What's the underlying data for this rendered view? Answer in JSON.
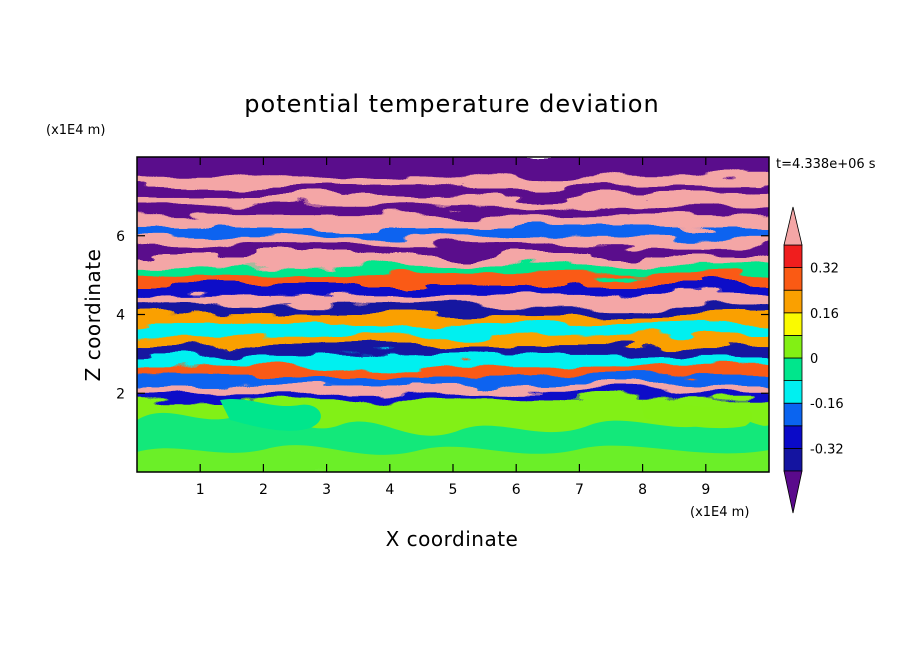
{
  "chart_data": {
    "type": "heatmap",
    "title": "potential temperature deviation",
    "xlabel": "X coordinate",
    "ylabel": "Z coordinate",
    "x_unit": "(x1E4 m)",
    "y_unit": "(x1E4 m)",
    "time_label": "t=4.338e+06 s",
    "xlim": [
      0,
      10
    ],
    "ylim": [
      0,
      8
    ],
    "x_ticks": [
      "1",
      "2",
      "3",
      "4",
      "5",
      "6",
      "7",
      "8",
      "9"
    ],
    "y_ticks": [
      "2",
      "4",
      "6"
    ],
    "x_tick_values": [
      1,
      2,
      3,
      4,
      5,
      6,
      7,
      8,
      9
    ],
    "y_tick_values": [
      2,
      4,
      6
    ],
    "colorbar": {
      "levels": [
        -0.4,
        -0.32,
        -0.24,
        -0.16,
        -0.08,
        0,
        0.08,
        0.16,
        0.24,
        0.32,
        0.4
      ],
      "colors": [
        "#5a0a8c",
        "#1414a0",
        "#0a0ac8",
        "#0a64f0",
        "#00f0f0",
        "#00e68c",
        "#82f014",
        "#fafa00",
        "#faa000",
        "#fa5a14",
        "#f01e1e",
        "#f4a6a6"
      ],
      "under_color": "#5a0a8c",
      "over_color": "#f4a6a6",
      "tick_labels": [
        "0.32",
        "0.16",
        "0",
        "-0.16",
        "-0.32"
      ],
      "tick_values": [
        0.32,
        0.16,
        0,
        -0.16,
        -0.32
      ]
    },
    "bands": [
      {
        "z0": 0.0,
        "z1": 1.95,
        "value": 0.0
      },
      {
        "z0": 1.95,
        "z1": 2.1,
        "value": -0.3
      },
      {
        "z0": 2.1,
        "z1": 2.3,
        "value": 0.42
      },
      {
        "z0": 2.3,
        "z1": 2.55,
        "value": -0.2
      },
      {
        "z0": 2.55,
        "z1": 2.8,
        "value": 0.26
      },
      {
        "z0": 2.8,
        "z1": 3.05,
        "value": -0.1
      },
      {
        "z0": 3.05,
        "z1": 3.3,
        "value": -0.33
      },
      {
        "z0": 3.3,
        "z1": 3.55,
        "value": 0.18
      },
      {
        "z0": 3.55,
        "z1": 3.85,
        "value": -0.12
      },
      {
        "z0": 3.85,
        "z1": 4.1,
        "value": 0.22
      },
      {
        "z0": 4.1,
        "z1": 4.35,
        "value": -0.36
      },
      {
        "z0": 4.35,
        "z1": 4.6,
        "value": 0.42
      },
      {
        "z0": 4.6,
        "z1": 4.85,
        "value": -0.28
      },
      {
        "z0": 4.85,
        "z1": 5.1,
        "value": 0.3
      },
      {
        "z0": 5.1,
        "z1": 5.35,
        "value": -0.05
      },
      {
        "z0": 5.35,
        "z1": 5.6,
        "value": 0.42
      },
      {
        "z0": 5.6,
        "z1": 5.85,
        "value": -0.44
      },
      {
        "z0": 5.85,
        "z1": 6.1,
        "value": 0.42
      },
      {
        "z0": 6.1,
        "z1": 6.35,
        "value": -0.22
      },
      {
        "z0": 6.35,
        "z1": 6.6,
        "value": 0.42
      },
      {
        "z0": 6.6,
        "z1": 6.85,
        "value": -0.44
      },
      {
        "z0": 6.85,
        "z1": 7.1,
        "value": 0.42
      },
      {
        "z0": 7.1,
        "z1": 7.35,
        "value": -0.44
      },
      {
        "z0": 7.35,
        "z1": 7.6,
        "value": 0.42
      },
      {
        "z0": 7.6,
        "z1": 8.0,
        "value": -0.44
      }
    ]
  }
}
